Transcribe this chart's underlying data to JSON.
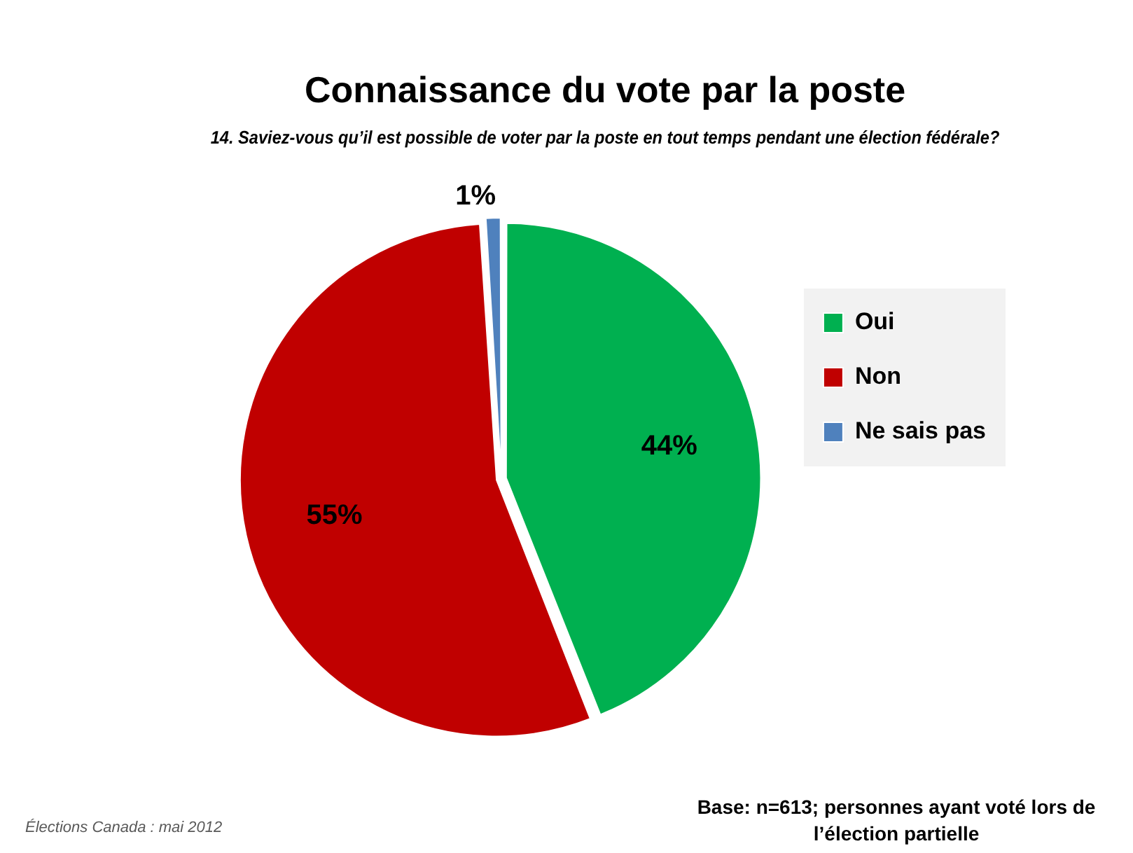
{
  "chart_data": {
    "type": "pie",
    "title": "Connaissance du vote par la poste",
    "subtitle": "14. Saviez-vous qu’il est possible de voter par la poste en tout temps pendant une élection fédérale?",
    "categories": [
      "Oui",
      "Non",
      "Ne sais pas"
    ],
    "values": [
      44,
      55,
      1
    ],
    "colors": [
      "#00b050",
      "#c00000",
      "#4f81bd"
    ],
    "value_labels": [
      "44%",
      "55%",
      "1%"
    ],
    "legend": "right",
    "annotations": [
      "Élections Canada : mai 2012",
      "Base: n=613; personnes ayant voté lors de l’élection partielle"
    ]
  }
}
